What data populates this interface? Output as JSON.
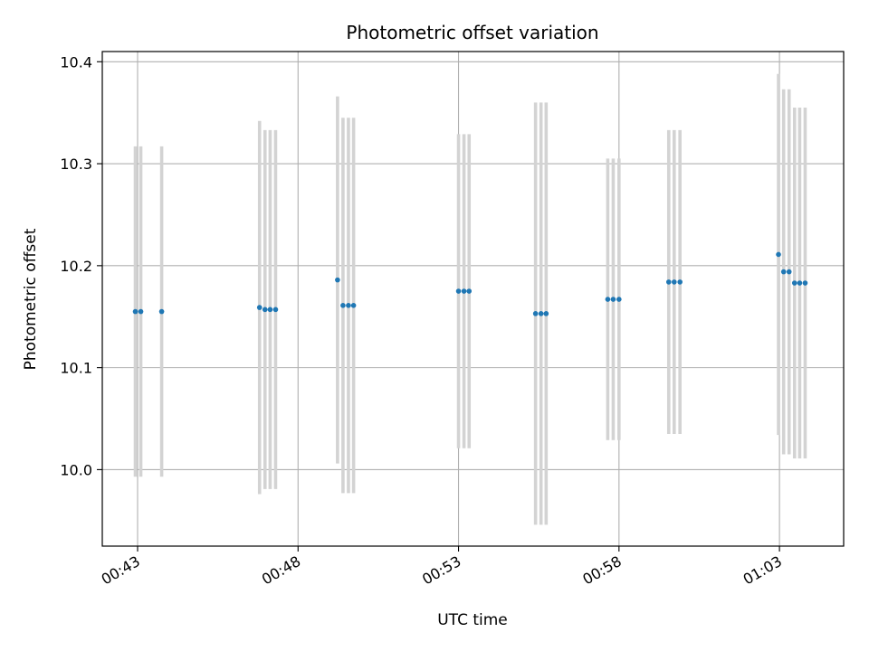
{
  "chart_data": {
    "type": "scatter",
    "title": "Photometric offset variation",
    "xlabel": "UTC time",
    "ylabel": "Photometric offset",
    "x_ticks": [
      {
        "minutes": 43,
        "label": "00:43"
      },
      {
        "minutes": 48,
        "label": "00:48"
      },
      {
        "minutes": 53,
        "label": "00:53"
      },
      {
        "minutes": 58,
        "label": "00:58"
      },
      {
        "minutes": 63,
        "label": "01:03"
      }
    ],
    "y_ticks": [
      {
        "value": 10.0,
        "label": "10.0"
      },
      {
        "value": 10.1,
        "label": "10.1"
      },
      {
        "value": 10.2,
        "label": "10.2"
      },
      {
        "value": 10.3,
        "label": "10.3"
      },
      {
        "value": 10.4,
        "label": "10.4"
      }
    ],
    "xlim": [
      41.9,
      65.0
    ],
    "ylim": [
      9.925,
      10.41
    ],
    "grid": true,
    "x_time_note": "minutes after 00:00 UTC",
    "points": [
      {
        "x": 42.93,
        "y": 10.155,
        "err": 0.162
      },
      {
        "x": 43.1,
        "y": 10.155,
        "err": 0.162
      },
      {
        "x": 43.75,
        "y": 10.155,
        "err": 0.162
      },
      {
        "x": 46.8,
        "y": 10.159,
        "err": 0.183
      },
      {
        "x": 46.97,
        "y": 10.157,
        "err": 0.176
      },
      {
        "x": 47.13,
        "y": 10.157,
        "err": 0.176
      },
      {
        "x": 47.3,
        "y": 10.157,
        "err": 0.176
      },
      {
        "x": 49.23,
        "y": 10.186,
        "err": 0.18
      },
      {
        "x": 49.4,
        "y": 10.161,
        "err": 0.184
      },
      {
        "x": 49.57,
        "y": 10.161,
        "err": 0.184
      },
      {
        "x": 49.73,
        "y": 10.161,
        "err": 0.184
      },
      {
        "x": 53.0,
        "y": 10.175,
        "err": 0.154
      },
      {
        "x": 53.17,
        "y": 10.175,
        "err": 0.154
      },
      {
        "x": 53.33,
        "y": 10.175,
        "err": 0.154
      },
      {
        "x": 55.4,
        "y": 10.153,
        "err": 0.207
      },
      {
        "x": 55.57,
        "y": 10.153,
        "err": 0.207
      },
      {
        "x": 55.73,
        "y": 10.153,
        "err": 0.207
      },
      {
        "x": 57.65,
        "y": 10.167,
        "err": 0.138
      },
      {
        "x": 57.82,
        "y": 10.167,
        "err": 0.138
      },
      {
        "x": 58.0,
        "y": 10.167,
        "err": 0.138
      },
      {
        "x": 59.55,
        "y": 10.184,
        "err": 0.149
      },
      {
        "x": 59.72,
        "y": 10.184,
        "err": 0.149
      },
      {
        "x": 59.9,
        "y": 10.184,
        "err": 0.149
      },
      {
        "x": 62.97,
        "y": 10.211,
        "err": 0.177
      },
      {
        "x": 63.13,
        "y": 10.194,
        "err": 0.179
      },
      {
        "x": 63.3,
        "y": 10.194,
        "err": 0.179
      },
      {
        "x": 63.47,
        "y": 10.183,
        "err": 0.172
      },
      {
        "x": 63.63,
        "y": 10.183,
        "err": 0.172
      },
      {
        "x": 63.8,
        "y": 10.183,
        "err": 0.172
      }
    ],
    "point_color": "#1f77b4",
    "errorbar_color": "#d3d3d3",
    "grid_color": "#b0b0b0"
  }
}
